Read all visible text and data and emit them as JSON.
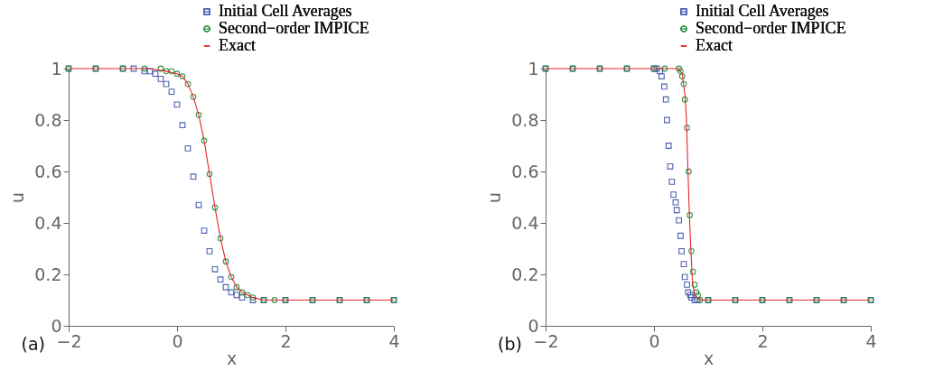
{
  "chart_data": [
    {
      "type": "scatter",
      "xlabel": "x",
      "ylabel": "u",
      "xlim": [
        -2,
        4
      ],
      "ylim": [
        0,
        1
      ],
      "xticks": [
        -2,
        0,
        2,
        4
      ],
      "yticks": [
        0,
        0.2,
        0.4,
        0.6,
        0.8,
        1
      ],
      "grid": false,
      "legend": "top right",
      "annotations": [
        "(a)"
      ],
      "series": [
        {
          "name": "Initial Cell Averages",
          "marker": "square",
          "color": "#3b4fa8",
          "x": [
            -2,
            -1.5,
            -1,
            -0.8,
            -0.6,
            -0.5,
            -0.4,
            -0.3,
            -0.2,
            -0.1,
            0,
            0.1,
            0.2,
            0.3,
            0.4,
            0.5,
            0.6,
            0.7,
            0.8,
            0.9,
            1,
            1.1,
            1.2,
            1.4,
            1.6,
            2,
            2.5,
            3,
            3.5,
            4
          ],
          "values": [
            1,
            1,
            1,
            1,
            0.99,
            0.99,
            0.98,
            0.96,
            0.94,
            0.91,
            0.86,
            0.78,
            0.69,
            0.58,
            0.47,
            0.37,
            0.29,
            0.22,
            0.18,
            0.15,
            0.13,
            0.12,
            0.11,
            0.1,
            0.1,
            0.1,
            0.1,
            0.1,
            0.1,
            0.1
          ]
        },
        {
          "name": "Second−order IMPICE",
          "marker": "circle",
          "color": "#1f8a3c",
          "x": [
            -2,
            -1.5,
            -1,
            -0.6,
            -0.3,
            -0.2,
            -0.1,
            0,
            0.1,
            0.2,
            0.3,
            0.4,
            0.5,
            0.6,
            0.7,
            0.8,
            0.9,
            1,
            1.1,
            1.2,
            1.3,
            1.4,
            1.6,
            1.8,
            2,
            2.5,
            3,
            3.5,
            4
          ],
          "values": [
            1,
            1,
            1,
            1,
            1,
            0.99,
            0.99,
            0.98,
            0.97,
            0.94,
            0.89,
            0.82,
            0.72,
            0.59,
            0.46,
            0.34,
            0.25,
            0.19,
            0.15,
            0.13,
            0.12,
            0.11,
            0.1,
            0.1,
            0.1,
            0.1,
            0.1,
            0.1,
            0.1
          ]
        },
        {
          "name": "Exact",
          "type": "line",
          "marker": "none",
          "color": "#e8262b",
          "x": [
            -2,
            -1,
            -0.5,
            -0.2,
            0,
            0.1,
            0.2,
            0.3,
            0.4,
            0.5,
            0.6,
            0.7,
            0.8,
            0.9,
            1,
            1.1,
            1.2,
            1.3,
            1.4,
            1.6,
            2,
            3,
            4
          ],
          "values": [
            1,
            1,
            1,
            0.99,
            0.98,
            0.97,
            0.94,
            0.89,
            0.82,
            0.72,
            0.59,
            0.46,
            0.34,
            0.25,
            0.19,
            0.15,
            0.13,
            0.12,
            0.11,
            0.1,
            0.1,
            0.1,
            0.1
          ]
        }
      ]
    },
    {
      "type": "scatter",
      "xlabel": "x",
      "ylabel": "u",
      "xlim": [
        -2,
        4
      ],
      "ylim": [
        0,
        1
      ],
      "xticks": [
        -2,
        0,
        2,
        4
      ],
      "yticks": [
        0,
        0.2,
        0.4,
        0.6,
        0.8,
        1
      ],
      "grid": false,
      "legend": "top right",
      "annotations": [
        "(b)"
      ],
      "series": [
        {
          "name": "Initial Cell Averages",
          "marker": "square",
          "color": "#3b4fa8",
          "x": [
            -2,
            -1.5,
            -1,
            -0.5,
            0,
            0.05,
            0.11,
            0.14,
            0.19,
            0.22,
            0.24,
            0.27,
            0.3,
            0.33,
            0.36,
            0.4,
            0.42,
            0.46,
            0.49,
            0.51,
            0.55,
            0.57,
            0.61,
            0.63,
            0.67,
            0.69,
            0.75,
            0.8,
            1,
            1.5,
            2,
            2.5,
            3,
            3.5,
            4
          ],
          "values": [
            1,
            1,
            1,
            1,
            1,
            1,
            0.99,
            0.97,
            0.93,
            0.88,
            0.8,
            0.7,
            0.62,
            0.56,
            0.51,
            0.48,
            0.45,
            0.41,
            0.35,
            0.29,
            0.24,
            0.19,
            0.16,
            0.13,
            0.12,
            0.11,
            0.1,
            0.1,
            0.1,
            0.1,
            0.1,
            0.1,
            0.1,
            0.1,
            0.1
          ]
        },
        {
          "name": "Second−order IMPICE",
          "marker": "circle",
          "color": "#1f8a3c",
          "x": [
            -2,
            -1.5,
            -1,
            -0.5,
            0,
            0.2,
            0.46,
            0.49,
            0.52,
            0.55,
            0.57,
            0.61,
            0.64,
            0.66,
            0.69,
            0.72,
            0.75,
            0.78,
            0.81,
            0.85,
            1,
            1.5,
            2,
            2.5,
            3,
            3.5,
            4
          ],
          "values": [
            1,
            1,
            1,
            1,
            1,
            1,
            1,
            0.99,
            0.97,
            0.94,
            0.88,
            0.77,
            0.6,
            0.43,
            0.29,
            0.21,
            0.16,
            0.13,
            0.12,
            0.1,
            0.1,
            0.1,
            0.1,
            0.1,
            0.1,
            0.1,
            0.1
          ]
        },
        {
          "name": "Exact",
          "type": "line",
          "marker": "none",
          "color": "#e8262b",
          "x": [
            -2,
            0,
            0.45,
            0.52,
            0.57,
            0.6,
            0.62,
            0.65,
            0.68,
            0.71,
            0.75,
            0.8,
            0.85,
            1,
            2,
            4
          ],
          "values": [
            1,
            1,
            1,
            0.98,
            0.9,
            0.8,
            0.65,
            0.45,
            0.3,
            0.17,
            0.12,
            0.11,
            0.1,
            0.1,
            0.1,
            0.1
          ]
        }
      ]
    }
  ]
}
